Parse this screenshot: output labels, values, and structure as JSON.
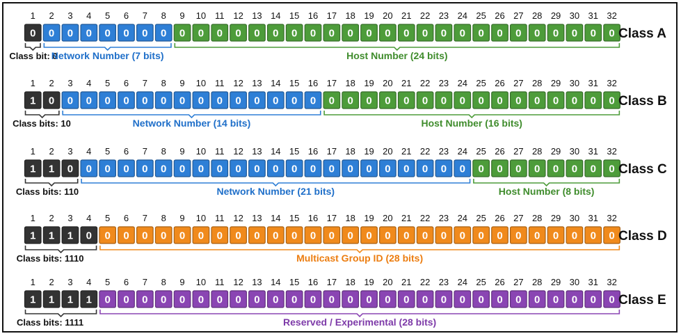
{
  "colors": {
    "class_bit": "#333333",
    "network": "#2e7fd6",
    "host": "#4d9c3a",
    "multicast": "#f08a1c",
    "reserved": "#8a45b3",
    "network_text": "#1f6fc9",
    "host_text": "#3f8c2c",
    "multicast_text": "#ec7d10",
    "reserved_text": "#7d3aa8"
  },
  "rows": [
    {
      "class_label": "Class A",
      "bits": "00000000000000000000000000000000",
      "class_bits_label": "Class bit: 0",
      "segments": [
        {
          "type": "class_bit",
          "from": 1,
          "to": 1
        },
        {
          "type": "network",
          "from": 2,
          "to": 8,
          "label": "Network Number (7 bits)"
        },
        {
          "type": "host",
          "from": 9,
          "to": 32,
          "label": "Host Number (24 bits)"
        }
      ]
    },
    {
      "class_label": "Class B",
      "bits": "10000000000000000000000000000000",
      "class_bits_label": "Class bits: 10",
      "segments": [
        {
          "type": "class_bit",
          "from": 1,
          "to": 2
        },
        {
          "type": "network",
          "from": 3,
          "to": 16,
          "label": "Network Number (14 bits)"
        },
        {
          "type": "host",
          "from": 17,
          "to": 32,
          "label": "Host Number (16 bits)"
        }
      ]
    },
    {
      "class_label": "Class C",
      "bits": "11000000000000000000000000000000",
      "class_bits_label": "Class bits: 110",
      "segments": [
        {
          "type": "class_bit",
          "from": 1,
          "to": 3
        },
        {
          "type": "network",
          "from": 4,
          "to": 24,
          "label": "Network Number (21 bits)"
        },
        {
          "type": "host",
          "from": 25,
          "to": 32,
          "label": "Host Number (8 bits)"
        }
      ]
    },
    {
      "class_label": "Class D",
      "bits": "11100000000000000000000000000000",
      "class_bits_label": "Class bits: 1110",
      "segments": [
        {
          "type": "class_bit",
          "from": 1,
          "to": 4
        },
        {
          "type": "multicast",
          "from": 5,
          "to": 32,
          "label": "Multicast Group ID (28 bits)"
        }
      ]
    },
    {
      "class_label": "Class E",
      "bits": "11110000000000000000000000000000",
      "class_bits_label": "Class bits: 1111",
      "segments": [
        {
          "type": "class_bit",
          "from": 1,
          "to": 4
        },
        {
          "type": "reserved",
          "from": 5,
          "to": 32,
          "label": "Reserved / Experimental (28 bits)"
        }
      ]
    }
  ]
}
